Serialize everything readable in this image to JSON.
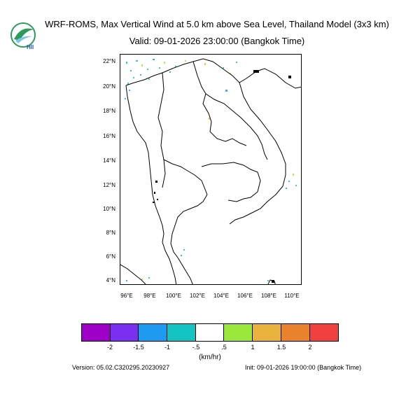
{
  "header": {
    "title": "WRF-ROMS, Max Vertical Wind at 5.0 km above Sea Level, Thailand Model (3x3 km)",
    "subtitle": "Valid: 09-01-2026 23:00:00 (Bangkok Time)",
    "logo_text": "HII"
  },
  "map": {
    "lat_labels": [
      "22°N",
      "20°N",
      "18°N",
      "16°N",
      "14°N",
      "12°N",
      "10°N",
      "8°N",
      "6°N",
      "4°N"
    ],
    "lon_labels": [
      "96°E",
      "98°E",
      "100°E",
      "102°E",
      "104°E",
      "106°E",
      "108°E",
      "110°E"
    ]
  },
  "colorbar": {
    "colors": [
      "#9e00c8",
      "#7b2ff0",
      "#1e9bf0",
      "#14c4c4",
      "#ffffff",
      "#9be83c",
      "#e8b23c",
      "#e8822c",
      "#f04040"
    ],
    "ticks": [
      "-2",
      "-1.5",
      "-1",
      "-.5",
      ".5",
      "1",
      "1.5",
      "2"
    ],
    "unit": "(km/hr)"
  },
  "footer": {
    "version": "Version: 05.02.C320295.20230927",
    "init": "Init: 09-01-2026 19:00:00 (Bangkok Time)"
  }
}
